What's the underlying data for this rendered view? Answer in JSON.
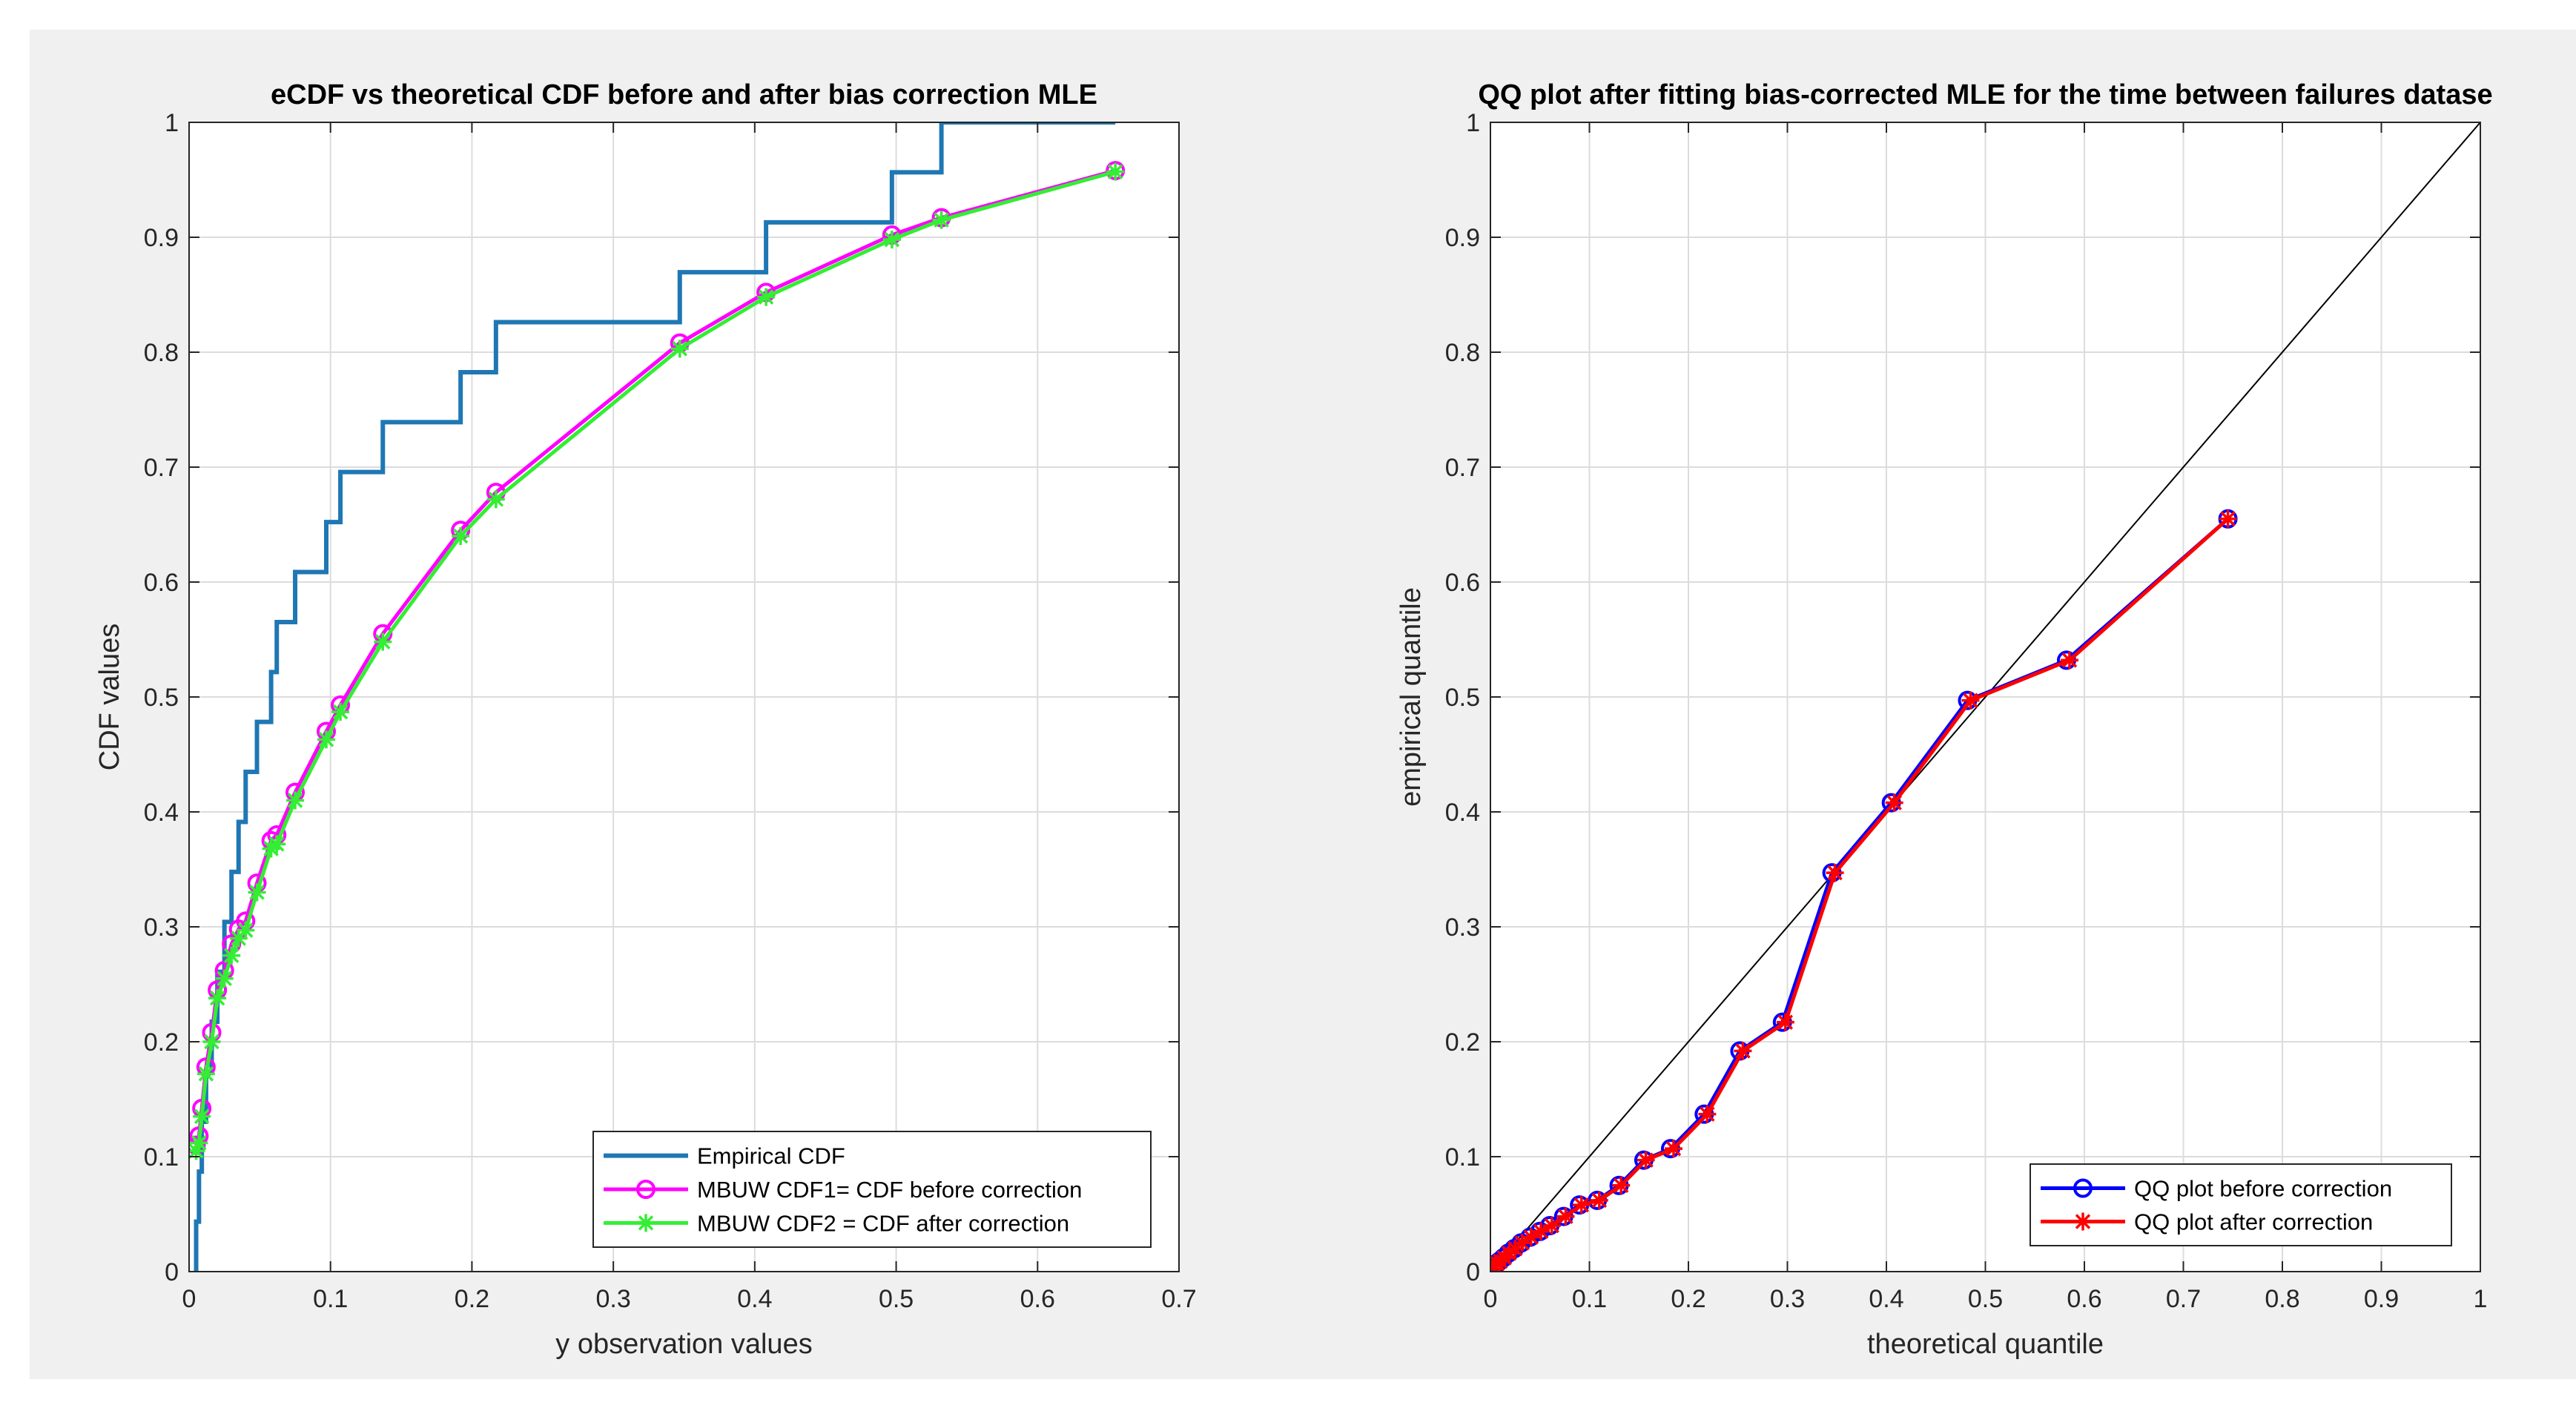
{
  "figure": {
    "background": "#f0f0f0",
    "axes_background": "#ffffff"
  },
  "chart_data": [
    {
      "type": "line",
      "title": "eCDF vs theoretical CDF before and after bias correction MLE",
      "xlabel": "y observation values",
      "ylabel": "CDF values",
      "xlim": [
        0,
        0.7
      ],
      "ylim": [
        0,
        1
      ],
      "xticks": [
        0,
        0.1,
        0.2,
        0.3,
        0.4,
        0.5,
        0.6,
        0.7
      ],
      "yticks": [
        0,
        0.1,
        0.2,
        0.3,
        0.4,
        0.5,
        0.6,
        0.7,
        0.8,
        0.9,
        1
      ],
      "xtick_labels": [
        "0",
        "0.1",
        "0.2",
        "0.3",
        "0.4",
        "0.5",
        "0.6",
        "0.7"
      ],
      "ytick_labels": [
        "0",
        "0.1",
        "0.2",
        "0.3",
        "0.4",
        "0.5",
        "0.6",
        "0.7",
        "0.8",
        "0.9",
        "1"
      ],
      "grid": true,
      "legend_position": "bottom-right",
      "series": [
        {
          "name": "Empirical CDF",
          "style": "step",
          "color": "#1f77b4",
          "marker": "none",
          "x": [
            0.005,
            0.007,
            0.009,
            0.012,
            0.016,
            0.02,
            0.025,
            0.03,
            0.035,
            0.04,
            0.048,
            0.058,
            0.062,
            0.075,
            0.097,
            0.107,
            0.137,
            0.192,
            0.217,
            0.347,
            0.408,
            0.497,
            0.532,
            0.655
          ],
          "y": [
            0.0435,
            0.087,
            0.1304,
            0.1739,
            0.2174,
            0.2609,
            0.3043,
            0.3478,
            0.3913,
            0.4348,
            0.4783,
            0.5217,
            0.5652,
            0.6087,
            0.6522,
            0.6957,
            0.7391,
            0.7826,
            0.8261,
            0.8696,
            0.913,
            0.9565,
            1.0,
            1.0
          ]
        },
        {
          "name": "MBUW CDF1= CDF before correction",
          "style": "line",
          "color": "#ff00ff",
          "marker": "circle",
          "x": [
            0.005,
            0.007,
            0.009,
            0.012,
            0.016,
            0.02,
            0.025,
            0.03,
            0.035,
            0.04,
            0.048,
            0.058,
            0.062,
            0.075,
            0.097,
            0.107,
            0.137,
            0.192,
            0.217,
            0.347,
            0.408,
            0.497,
            0.532,
            0.655
          ],
          "y": [
            0.11,
            0.118,
            0.142,
            0.178,
            0.208,
            0.245,
            0.262,
            0.285,
            0.298,
            0.305,
            0.338,
            0.375,
            0.38,
            0.417,
            0.47,
            0.493,
            0.555,
            0.645,
            0.678,
            0.808,
            0.852,
            0.902,
            0.917,
            0.958
          ]
        },
        {
          "name": "MBUW CDF2 = CDF after correction",
          "style": "line",
          "color": "#33ee33",
          "marker": "star",
          "x": [
            0.005,
            0.007,
            0.009,
            0.012,
            0.016,
            0.02,
            0.025,
            0.03,
            0.035,
            0.04,
            0.048,
            0.058,
            0.062,
            0.075,
            0.097,
            0.107,
            0.137,
            0.192,
            0.217,
            0.347,
            0.408,
            0.497,
            0.532,
            0.655
          ],
          "y": [
            0.105,
            0.112,
            0.135,
            0.172,
            0.2,
            0.238,
            0.255,
            0.275,
            0.29,
            0.297,
            0.33,
            0.368,
            0.372,
            0.41,
            0.463,
            0.487,
            0.548,
            0.64,
            0.672,
            0.803,
            0.848,
            0.898,
            0.915,
            0.957
          ]
        }
      ]
    },
    {
      "type": "line",
      "title": "QQ plot after fitting bias-corrected MLE for the time between failures datase",
      "xlabel": "theoretical quantile",
      "ylabel": "empirical quantile",
      "xlim": [
        0,
        1
      ],
      "ylim": [
        0,
        1
      ],
      "xticks": [
        0,
        0.1,
        0.2,
        0.3,
        0.4,
        0.5,
        0.6,
        0.7,
        0.8,
        0.9,
        1
      ],
      "yticks": [
        0,
        0.1,
        0.2,
        0.3,
        0.4,
        0.5,
        0.6,
        0.7,
        0.8,
        0.9,
        1
      ],
      "xtick_labels": [
        "0",
        "0.1",
        "0.2",
        "0.3",
        "0.4",
        "0.5",
        "0.6",
        "0.7",
        "0.8",
        "0.9",
        "1"
      ],
      "ytick_labels": [
        "0",
        "0.1",
        "0.2",
        "0.3",
        "0.4",
        "0.5",
        "0.6",
        "0.7",
        "0.8",
        "0.9",
        "1"
      ],
      "grid": true,
      "legend_position": "bottom-right",
      "reference_line": {
        "x": [
          0,
          1
        ],
        "y": [
          0,
          1
        ],
        "color": "#000000"
      },
      "series": [
        {
          "name": "QQ plot before correction",
          "style": "line",
          "color": "#0000ff",
          "marker": "circle",
          "x": [
            0.003,
            0.006,
            0.009,
            0.013,
            0.018,
            0.024,
            0.031,
            0.04,
            0.05,
            0.06,
            0.074,
            0.09,
            0.108,
            0.13,
            0.155,
            0.182,
            0.216,
            0.252,
            0.295,
            0.345,
            0.405,
            0.482,
            0.582,
            0.745
          ],
          "y": [
            0.005,
            0.007,
            0.009,
            0.012,
            0.016,
            0.02,
            0.025,
            0.03,
            0.035,
            0.04,
            0.048,
            0.058,
            0.062,
            0.075,
            0.097,
            0.107,
            0.137,
            0.192,
            0.217,
            0.347,
            0.408,
            0.497,
            0.532,
            0.655
          ]
        },
        {
          "name": "QQ plot after correction",
          "style": "line",
          "color": "#ff0000",
          "marker": "star",
          "x": [
            0.004,
            0.007,
            0.01,
            0.014,
            0.019,
            0.025,
            0.032,
            0.041,
            0.051,
            0.062,
            0.076,
            0.092,
            0.11,
            0.132,
            0.157,
            0.185,
            0.219,
            0.255,
            0.298,
            0.348,
            0.408,
            0.485,
            0.585,
            0.745
          ],
          "y": [
            0.005,
            0.007,
            0.009,
            0.012,
            0.016,
            0.02,
            0.025,
            0.03,
            0.035,
            0.04,
            0.048,
            0.058,
            0.062,
            0.075,
            0.097,
            0.107,
            0.137,
            0.192,
            0.217,
            0.347,
            0.408,
            0.497,
            0.532,
            0.655
          ]
        }
      ]
    }
  ]
}
